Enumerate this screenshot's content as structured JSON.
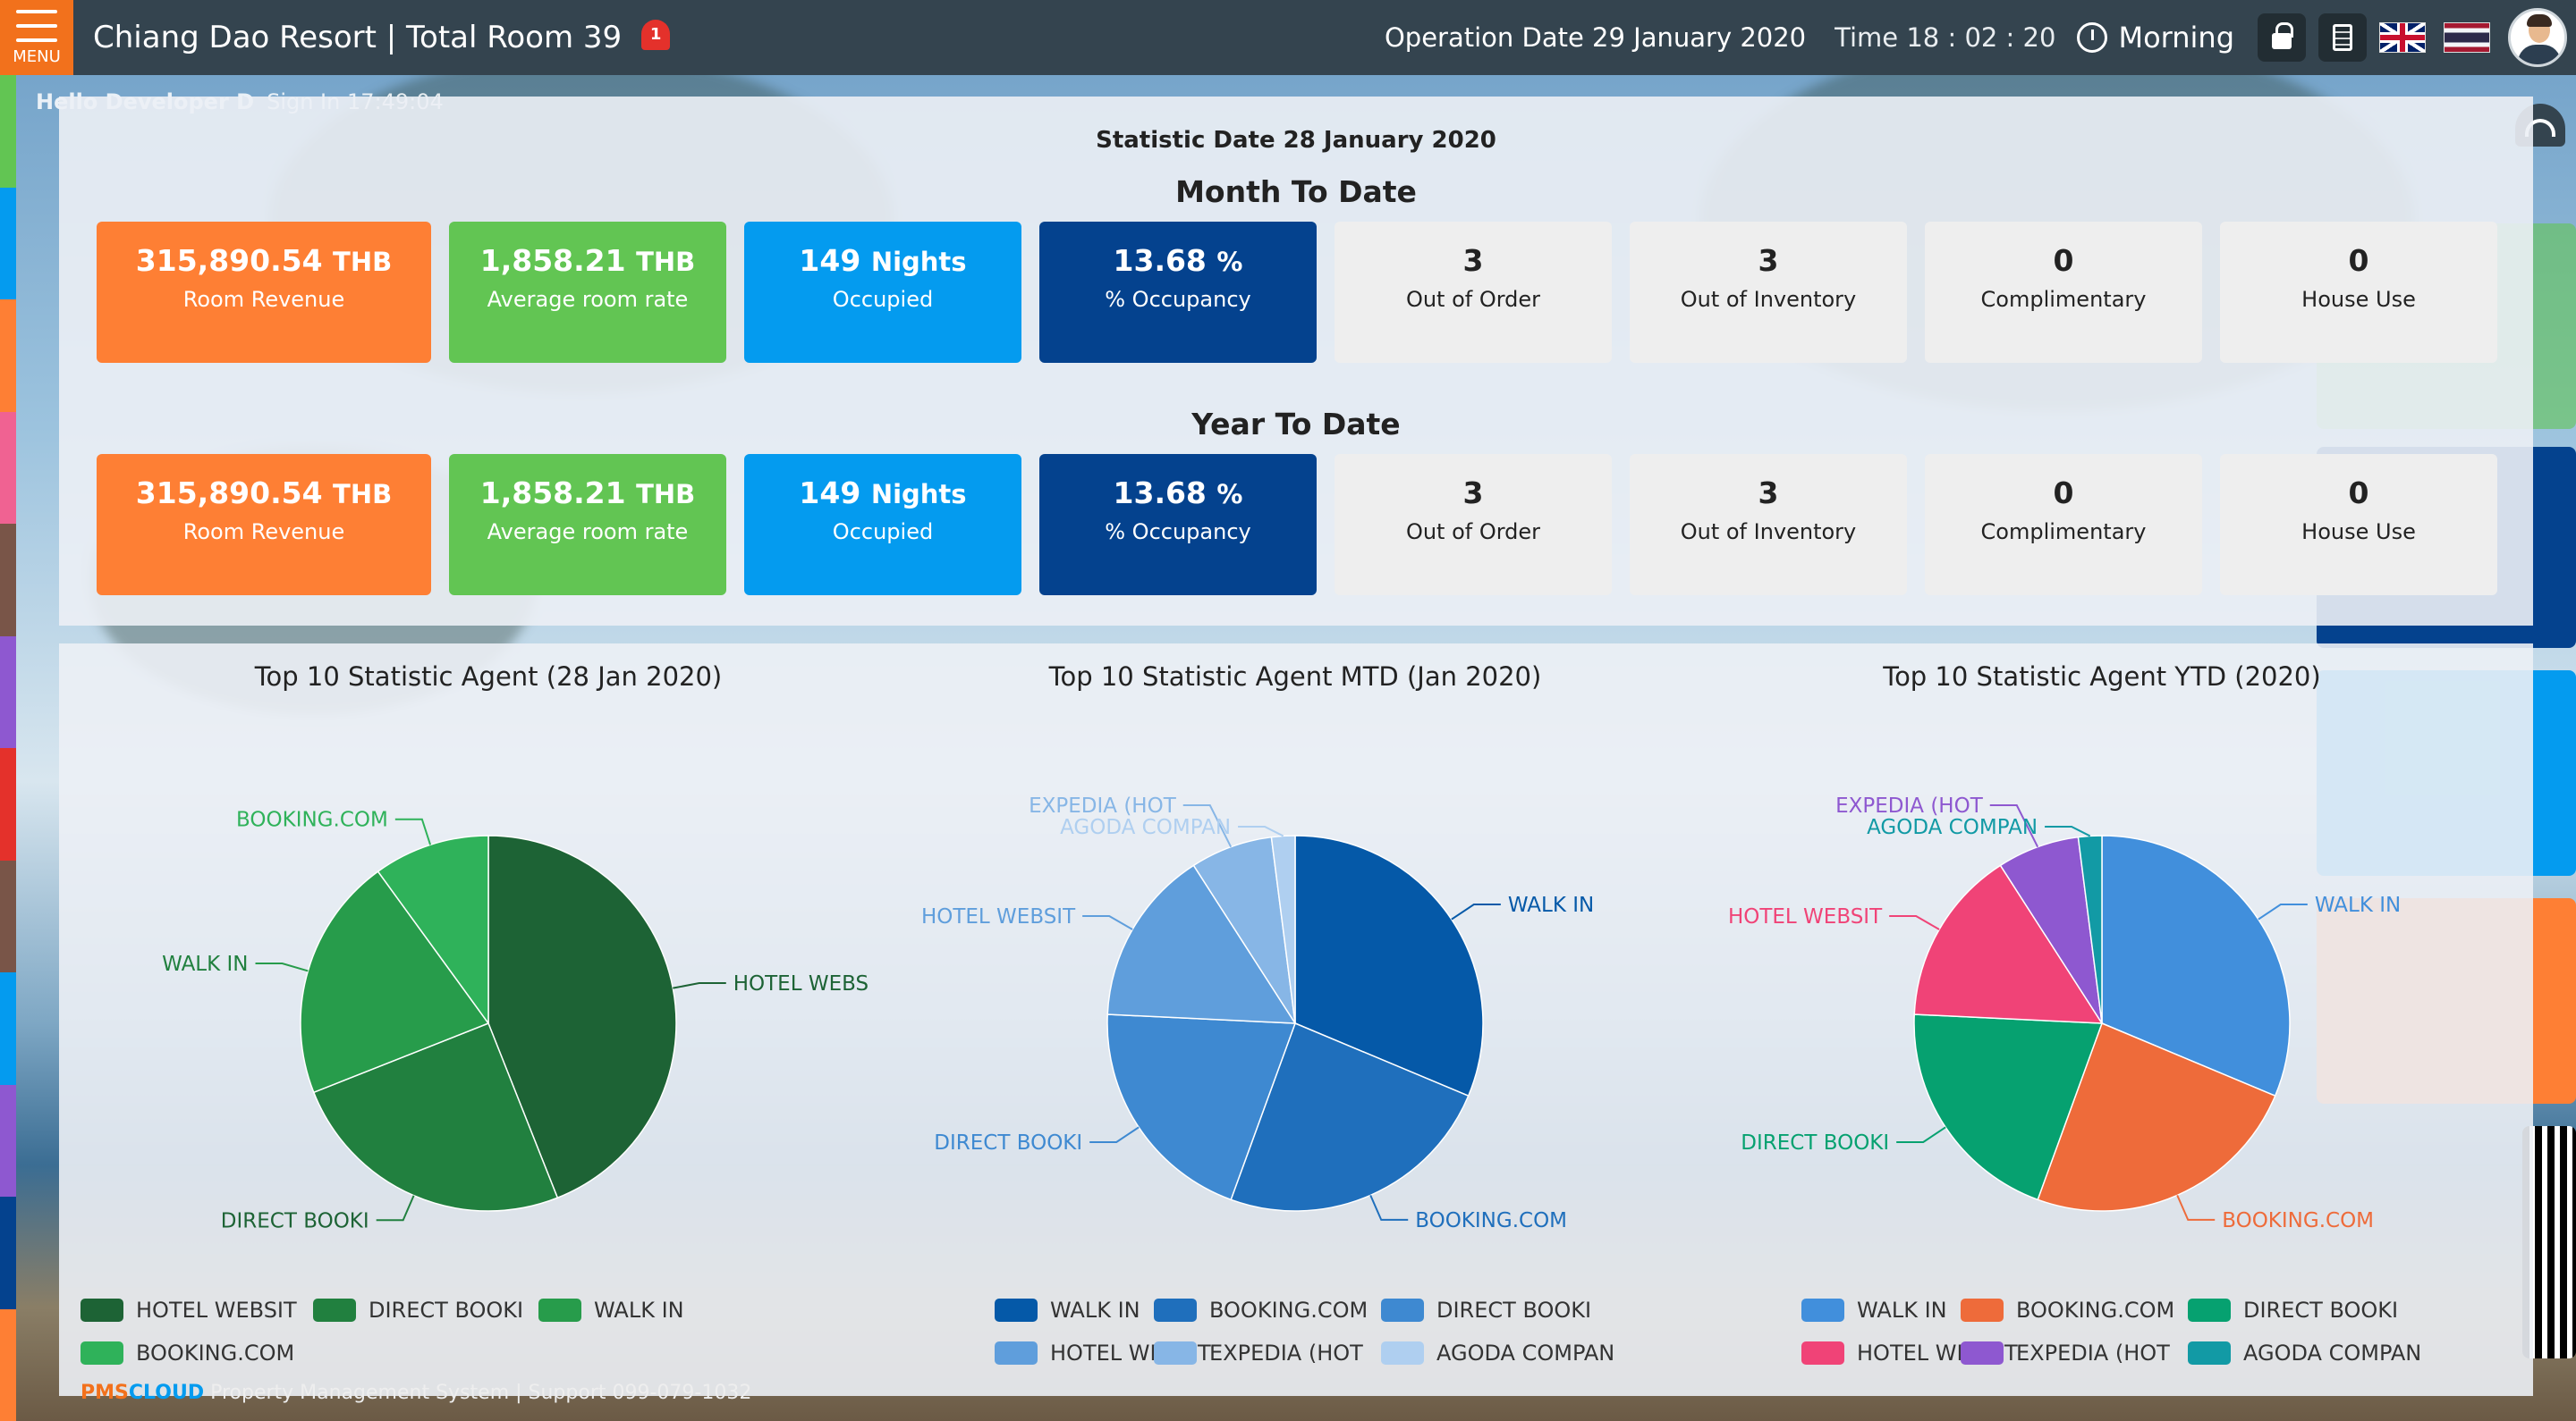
{
  "header": {
    "menu_label": "MENU",
    "title": "Chiang Dao Resort | Total Room 39",
    "notification_count": "1",
    "operation_date": "Operation Date 29 January 2020",
    "time": "Time 18 : 02 : 20",
    "shift": "Morning"
  },
  "user": {
    "greeting": "Hello Developer D",
    "sign_in": "Sign In 17:49:04"
  },
  "statistics": {
    "stat_date": "Statistic Date 28 January 2020",
    "sections": [
      {
        "title": "Month To Date",
        "boxes": [
          {
            "value": "315,890.54",
            "unit": "THB",
            "label": "Room Revenue",
            "color": "#fe7f34"
          },
          {
            "value": "1,858.21",
            "unit": "THB",
            "label": "Average room rate",
            "color": "#62c553"
          },
          {
            "value": "149",
            "unit": "Nights",
            "label": "Occupied",
            "color": "#049bef"
          },
          {
            "value": "13.68",
            "unit": "%",
            "label": "% Occupancy",
            "color": "#04428e"
          },
          {
            "value": "3",
            "unit": "",
            "label": "Out of Order",
            "color": "#eeeeee"
          },
          {
            "value": "3",
            "unit": "",
            "label": "Out of Inventory",
            "color": "#eeeeee"
          },
          {
            "value": "0",
            "unit": "",
            "label": "Complimentary",
            "color": "#eeeeee"
          },
          {
            "value": "0",
            "unit": "",
            "label": "House Use",
            "color": "#eeeeee"
          }
        ]
      },
      {
        "title": "Year To Date",
        "boxes": [
          {
            "value": "315,890.54",
            "unit": "THB",
            "label": "Room Revenue",
            "color": "#fe7f34"
          },
          {
            "value": "1,858.21",
            "unit": "THB",
            "label": "Average room rate",
            "color": "#62c553"
          },
          {
            "value": "149",
            "unit": "Nights",
            "label": "Occupied",
            "color": "#049bef"
          },
          {
            "value": "13.68",
            "unit": "%",
            "label": "% Occupancy",
            "color": "#04428e"
          },
          {
            "value": "3",
            "unit": "",
            "label": "Out of Order",
            "color": "#eeeeee"
          },
          {
            "value": "3",
            "unit": "",
            "label": "Out of Inventory",
            "color": "#eeeeee"
          },
          {
            "value": "0",
            "unit": "",
            "label": "Complimentary",
            "color": "#eeeeee"
          },
          {
            "value": "0",
            "unit": "",
            "label": "House Use",
            "color": "#eeeeee"
          }
        ]
      }
    ]
  },
  "chart_data": [
    {
      "type": "pie",
      "title": "Top 10 Statistic Agent (28 Jan 2020)",
      "labels": [
        "HOTEL WEBS",
        "DIRECT BOOKI",
        "WALK IN",
        "BOOKING.COM"
      ],
      "legend": [
        "HOTEL WEBSIT",
        "DIRECT BOOKI",
        "WALK IN",
        "BOOKING.COM"
      ],
      "values": [
        44,
        25,
        21,
        10
      ],
      "colors": [
        "#1d6335",
        "#21803f",
        "#279c4b",
        "#2fb25a"
      ],
      "label_colors": [
        "#1d6335",
        "#1d6335",
        "#21803f",
        "#2fb25a"
      ]
    },
    {
      "type": "pie",
      "title": "Top 10 Statistic Agent MTD (Jan 2020)",
      "labels": [
        "WALK IN",
        "BOOKING.COM",
        "DIRECT BOOKI",
        "HOTEL WEBSIT",
        "EXPEDIA (HOT",
        "AGODA COMPAN"
      ],
      "legend": [
        "WALK IN",
        "BOOKING.COM",
        "DIRECT BOOKI",
        "HOTEL WEBSIT",
        "EXPEDIA (HOT",
        "AGODA COMPAN"
      ],
      "values": [
        31,
        24,
        20,
        15,
        7,
        2
      ],
      "colors": [
        "#0559a8",
        "#1f6fbc",
        "#3e89d1",
        "#5f9edc",
        "#87b6e6",
        "#afcff0"
      ],
      "label_colors": [
        "#0559a8",
        "#1f6fbc",
        "#3e89d1",
        "#5f9edc",
        "#87b6e6",
        "#afcff0"
      ]
    },
    {
      "type": "pie",
      "title": "Top 10 Statistic Agent YTD (2020)",
      "labels": [
        "WALK IN",
        "BOOKING.COM",
        "DIRECT BOOKI",
        "HOTEL WEBSIT",
        "EXPEDIA (HOT",
        "AGODA COMPAN"
      ],
      "legend": [
        "WALK IN",
        "BOOKING.COM",
        "DIRECT BOOKI",
        "HOTEL WEBSIT",
        "EXPEDIA (HOT",
        "AGODA COMPAN"
      ],
      "values": [
        31,
        24,
        20,
        15,
        7,
        2
      ],
      "colors": [
        "#418fdc",
        "#ee6b3a",
        "#06a170",
        "#f04377",
        "#8e58d0",
        "#129aa5"
      ],
      "label_colors": [
        "#418fdc",
        "#ee6b3a",
        "#06a170",
        "#f04377",
        "#8e58d0",
        "#129aa5"
      ]
    }
  ],
  "footer": {
    "brand_a": "PMS",
    "brand_b": "CLOUD",
    "text": " Property Management System | Support 099-079-1032"
  },
  "colors": {
    "header_bg": "#34444f",
    "menu_bg": "#f2711c",
    "strip": [
      "#62c553",
      "#049bef",
      "#fe7f34",
      "#f06292",
      "#795548",
      "#8e58d0",
      "#e4312b",
      "#795548",
      "#049bef",
      "#8e58d0",
      "#04428e",
      "#fe7f34"
    ]
  }
}
